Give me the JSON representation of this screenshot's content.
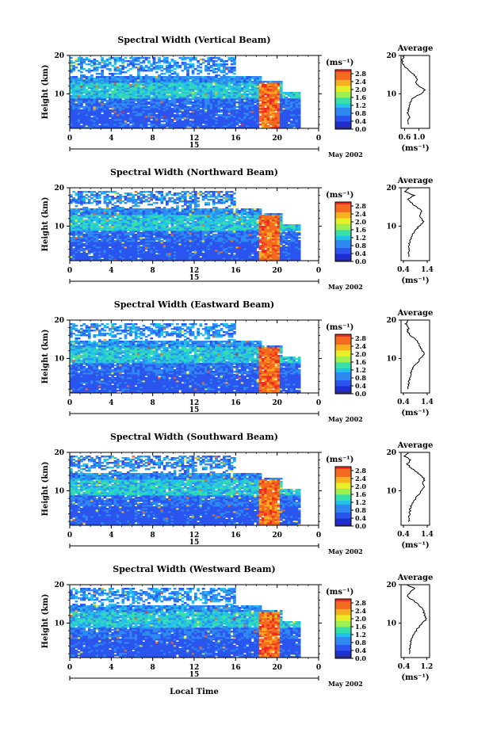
{
  "colorbar_ticks": [
    "0.0",
    "0.4",
    "0.8",
    "1.2",
    "1.6",
    "2.0",
    "2.4",
    "2.8"
  ],
  "colorbar_unit": "(ms⁻¹)",
  "colors": {
    "scale": [
      "#2a2a8a",
      "#1e2fd0",
      "#2b55ee",
      "#2e8af0",
      "#22c3e8",
      "#38e0a8",
      "#9ef050",
      "#e8ee28",
      "#f8b020",
      "#f46a20",
      "#ee2a22"
    ],
    "missing": "#ffffff",
    "strong": "#ee3322"
  },
  "date_label": "May 2002",
  "day_label": "15",
  "x_axis_label": "Local Time",
  "y_axis_label": "Height (km)",
  "avg_title": "Average",
  "avg_unit": "(ms⁻¹)",
  "x_ticks": [
    "0",
    "4",
    "8",
    "12",
    "16",
    "20",
    "0"
  ],
  "y_ticks": [
    "20",
    "10"
  ],
  "avg_y_ticks": [
    "20",
    "10"
  ],
  "chart_data": [
    {
      "type": "heatmap",
      "title": "Spectral Width (Vertical Beam)",
      "x_range": [
        0,
        24
      ],
      "y_range": [
        1,
        20
      ],
      "z_range": [
        0.0,
        3.0
      ],
      "xlabel": "",
      "ylabel": "Height (km)",
      "average": {
        "type": "line",
        "xlim": [
          0.5,
          1.3
        ],
        "x_ticks": [
          "0.6",
          "1.0"
        ],
        "heights": [
          2,
          3,
          4,
          5,
          6,
          7,
          8,
          9,
          10,
          11,
          12,
          13,
          14,
          15,
          16,
          17,
          18,
          19,
          20
        ],
        "values": [
          0.72,
          0.7,
          0.74,
          0.68,
          0.72,
          0.74,
          0.78,
          0.85,
          1.05,
          1.18,
          1.0,
          0.92,
          0.95,
          0.85,
          0.75,
          0.62,
          0.55,
          0.52,
          0.6
        ]
      }
    },
    {
      "type": "heatmap",
      "title": "Spectral Width (Northward Beam)",
      "x_range": [
        0,
        24
      ],
      "y_range": [
        1,
        20
      ],
      "z_range": [
        0.0,
        3.0
      ],
      "xlabel": "",
      "ylabel": "Height (km)",
      "average": {
        "type": "line",
        "xlim": [
          0.3,
          1.5
        ],
        "x_ticks": [
          "0.4",
          "1.4"
        ],
        "heights": [
          2,
          3,
          4,
          5,
          6,
          7,
          8,
          9,
          10,
          11,
          12,
          13,
          14,
          15,
          16,
          17,
          18,
          19,
          20
        ],
        "values": [
          0.62,
          0.6,
          0.64,
          0.62,
          0.66,
          0.72,
          0.82,
          0.92,
          1.05,
          1.25,
          1.15,
          1.08,
          1.2,
          0.95,
          0.75,
          0.55,
          0.85,
          0.48,
          0.65
        ]
      }
    },
    {
      "type": "heatmap",
      "title": "Spectral Width (Eastward Beam)",
      "x_range": [
        0,
        24
      ],
      "y_range": [
        1,
        20
      ],
      "z_range": [
        0.0,
        3.0
      ],
      "xlabel": "",
      "ylabel": "Height (km)",
      "average": {
        "type": "line",
        "xlim": [
          0.3,
          1.5
        ],
        "x_ticks": [
          "0.4",
          "1.4"
        ],
        "heights": [
          2,
          3,
          4,
          5,
          6,
          7,
          8,
          9,
          10,
          11,
          12,
          13,
          14,
          15,
          16,
          17,
          18,
          19,
          20
        ],
        "values": [
          0.6,
          0.62,
          0.64,
          0.66,
          0.7,
          0.76,
          0.85,
          0.98,
          1.12,
          1.28,
          1.2,
          1.1,
          1.05,
          0.9,
          0.7,
          0.55,
          0.62,
          0.5,
          0.58
        ]
      }
    },
    {
      "type": "heatmap",
      "title": "Spectral Width (Southward Beam)",
      "x_range": [
        0,
        24
      ],
      "y_range": [
        1,
        20
      ],
      "z_range": [
        0.0,
        3.0
      ],
      "xlabel": "",
      "ylabel": "Height (km)",
      "average": {
        "type": "line",
        "xlim": [
          0.3,
          1.5
        ],
        "x_ticks": [
          "0.4",
          "1.4"
        ],
        "heights": [
          2,
          3,
          4,
          5,
          6,
          7,
          8,
          9,
          10,
          11,
          12,
          13,
          14,
          15,
          16,
          17,
          18,
          19,
          20
        ],
        "values": [
          0.62,
          0.63,
          0.66,
          0.68,
          0.72,
          0.8,
          0.9,
          1.02,
          1.15,
          1.3,
          1.22,
          1.28,
          1.15,
          0.92,
          0.72,
          0.55,
          0.7,
          0.45,
          0.6
        ]
      }
    },
    {
      "type": "heatmap",
      "title": "Spectral Width (Westward Beam)",
      "x_range": [
        0,
        24
      ],
      "y_range": [
        1,
        20
      ],
      "z_range": [
        0.0,
        3.0
      ],
      "xlabel": "Local Time",
      "ylabel": "Height (km)",
      "average": {
        "type": "line",
        "xlim": [
          0.3,
          1.3
        ],
        "x_ticks": [
          "0.4",
          "1.2"
        ],
        "heights": [
          2,
          3,
          4,
          5,
          6,
          7,
          8,
          9,
          10,
          11,
          12,
          13,
          14,
          15,
          16,
          17,
          18,
          19,
          20
        ],
        "values": [
          0.58,
          0.6,
          0.62,
          0.64,
          0.68,
          0.74,
          0.82,
          0.92,
          1.05,
          1.18,
          1.12,
          1.1,
          1.02,
          0.88,
          0.7,
          0.52,
          0.6,
          0.78,
          0.5
        ]
      }
    }
  ]
}
